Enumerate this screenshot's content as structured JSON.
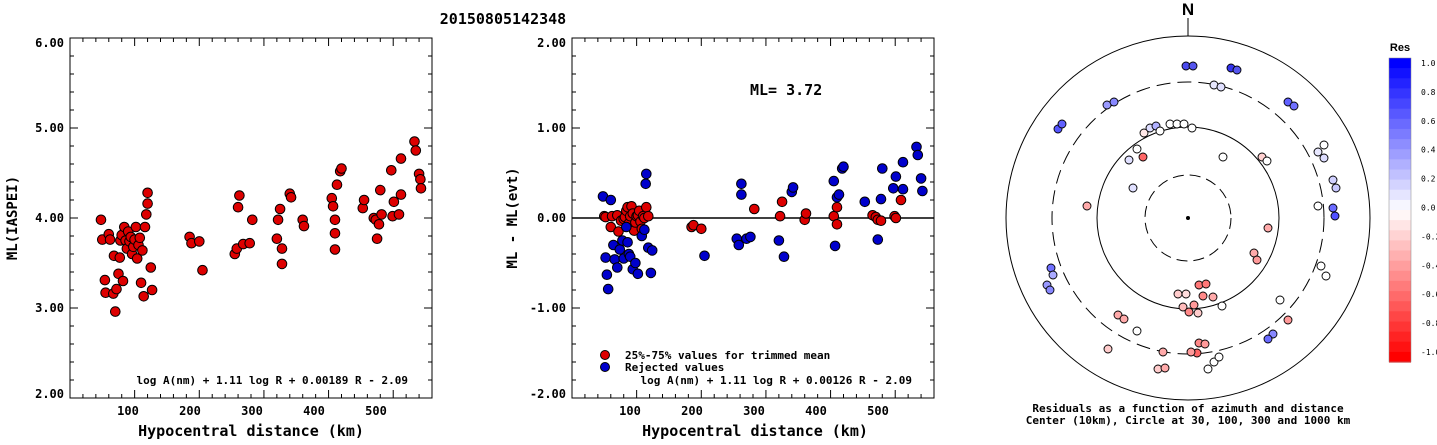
{
  "event_id": "20150805142348",
  "left_chart": {
    "ylabel": "ML(IASPEI)",
    "xlabel": "Hypocentral distance (km)",
    "formula": "log A(nm) + 1.11 log R + 0.00189 R - 2.09",
    "yticks": [
      "6.00",
      "5.00",
      "4.00",
      "3.00",
      "2.00"
    ],
    "xticks": [
      "100",
      "200",
      "300",
      "400",
      "500"
    ]
  },
  "middle_chart": {
    "ylabel": "ML - ML(evt)",
    "xlabel": "Hypocentral distance (km)",
    "ml_label": "ML= 3.72",
    "formula": "log A(nm) + 1.11 log R + 0.00126 R - 2.09",
    "legend_trimmed": "25%-75% values for trimmed mean",
    "legend_rejected": "Rejected values",
    "yticks": [
      "2.00",
      "1.00",
      "0.00",
      "-1.00",
      "-2.00"
    ],
    "xticks": [
      "100",
      "200",
      "300",
      "400",
      "500"
    ]
  },
  "polar": {
    "north": "N",
    "caption1": "Residuals as a function of azimuth and distance",
    "caption2": "Center (10km), Circle at 30, 100, 300 and 1000 km"
  },
  "colorbar": {
    "title": "Res",
    "ticks": [
      "1.0",
      "0.8",
      "0.6",
      "0.4",
      "0.2",
      "0.0",
      "-0.2",
      "-0.4",
      "-0.6",
      "-0.8",
      "-1.0"
    ]
  },
  "colors": {
    "trimmed": "#dd0000",
    "rejected": "#0000cc"
  },
  "chart_data": [
    {
      "type": "scatter",
      "title": "20150805142348",
      "xlabel": "Hypocentral distance (km)",
      "ylabel": "ML(IASPEI)",
      "xlim": [
        0,
        560
      ],
      "ylim": [
        2.0,
        6.0
      ],
      "series": [
        {
          "points": [
            [
              48,
              3.98
            ],
            [
              50,
              3.76
            ],
            [
              54,
              3.31
            ],
            [
              55,
              3.17
            ],
            [
              60,
              3.82
            ],
            [
              62,
              3.76
            ],
            [
              67,
              3.16
            ],
            [
              68,
              3.58
            ],
            [
              70,
              2.96
            ],
            [
              72,
              3.21
            ],
            [
              75,
              3.38
            ],
            [
              77,
              3.56
            ],
            [
              78,
              3.75
            ],
            [
              80,
              3.81
            ],
            [
              82,
              3.3
            ],
            [
              84,
              3.9
            ],
            [
              86,
              3.75
            ],
            [
              88,
              3.66
            ],
            [
              90,
              3.85
            ],
            [
              92,
              3.74
            ],
            [
              94,
              3.79
            ],
            [
              96,
              3.6
            ],
            [
              98,
              3.68
            ],
            [
              100,
              3.76
            ],
            [
              102,
              3.9
            ],
            [
              104,
              3.55
            ],
            [
              106,
              3.7
            ],
            [
              108,
              3.78
            ],
            [
              110,
              3.28
            ],
            [
              112,
              3.64
            ],
            [
              114,
              3.13
            ],
            [
              116,
              3.9
            ],
            [
              118,
              4.04
            ],
            [
              120,
              4.16
            ],
            [
              120,
              4.28
            ],
            [
              125,
              3.45
            ],
            [
              127,
              3.2
            ],
            [
              185,
              3.79
            ],
            [
              188,
              3.72
            ],
            [
              200,
              3.74
            ],
            [
              205,
              3.42
            ],
            [
              255,
              3.6
            ],
            [
              258,
              3.66
            ],
            [
              260,
              4.12
            ],
            [
              262,
              4.25
            ],
            [
              268,
              3.71
            ],
            [
              278,
              3.72
            ],
            [
              282,
              3.98
            ],
            [
              320,
              3.77
            ],
            [
              322,
              3.98
            ],
            [
              325,
              4.1
            ],
            [
              328,
              3.49
            ],
            [
              328,
              3.66
            ],
            [
              340,
              4.27
            ],
            [
              342,
              4.23
            ],
            [
              360,
              3.98
            ],
            [
              362,
              3.91
            ],
            [
              405,
              4.22
            ],
            [
              407,
              4.13
            ],
            [
              410,
              3.65
            ],
            [
              410,
              3.83
            ],
            [
              410,
              3.98
            ],
            [
              413,
              4.37
            ],
            [
              418,
              4.52
            ],
            [
              420,
              4.55
            ],
            [
              453,
              4.11
            ],
            [
              455,
              4.2
            ],
            [
              470,
              4.0
            ],
            [
              473,
              3.98
            ],
            [
              475,
              3.77
            ],
            [
              478,
              3.93
            ],
            [
              480,
              4.31
            ],
            [
              482,
              4.04
            ],
            [
              497,
              4.53
            ],
            [
              499,
              4.02
            ],
            [
              501,
              4.18
            ],
            [
              509,
              4.04
            ],
            [
              512,
              4.26
            ],
            [
              512,
              4.66
            ],
            [
              533,
              4.85
            ],
            [
              535,
              4.75
            ],
            [
              540,
              4.49
            ],
            [
              542,
              4.43
            ],
            [
              543,
              4.33
            ]
          ]
        }
      ]
    },
    {
      "type": "scatter",
      "xlabel": "Hypocentral distance (km)",
      "ylabel": "ML - ML(evt)",
      "xlim": [
        0,
        560
      ],
      "ylim": [
        -2.0,
        2.0
      ],
      "annotation": "ML= 3.72",
      "series": [
        {
          "name": "25%-75% values for trimmed mean",
          "points": [
            [
              50,
              0.02
            ],
            [
              52,
              0.01
            ],
            [
              60,
              -0.1
            ],
            [
              62,
              0.02
            ],
            [
              70,
              0.03
            ],
            [
              72,
              -0.15
            ],
            [
              76,
              -0.03
            ],
            [
              80,
              -0.01
            ],
            [
              82,
              0.01
            ],
            [
              84,
              0.08
            ],
            [
              86,
              0.12
            ],
            [
              88,
              -0.06
            ],
            [
              90,
              0.02
            ],
            [
              92,
              0.13
            ],
            [
              94,
              0.05
            ],
            [
              96,
              -0.14
            ],
            [
              98,
              -0.05
            ],
            [
              100,
              0.02
            ],
            [
              102,
              0.03
            ],
            [
              104,
              0.08
            ],
            [
              106,
              -0.04
            ],
            [
              108,
              -0.12
            ],
            [
              110,
              0.02
            ],
            [
              112,
              0.0
            ],
            [
              115,
              0.12
            ],
            [
              118,
              0.02
            ],
            [
              185,
              -0.1
            ],
            [
              188,
              -0.08
            ],
            [
              200,
              -0.12
            ],
            [
              282,
              0.1
            ],
            [
              322,
              0.02
            ],
            [
              325,
              0.18
            ],
            [
              360,
              -0.02
            ],
            [
              362,
              0.05
            ],
            [
              405,
              0.02
            ],
            [
              410,
              0.12
            ],
            [
              410,
              -0.07
            ],
            [
              465,
              0.03
            ],
            [
              470,
              0.01
            ],
            [
              473,
              -0.02
            ],
            [
              478,
              -0.03
            ],
            [
              499,
              0.02
            ],
            [
              501,
              0.0
            ],
            [
              509,
              0.2
            ]
          ]
        },
        {
          "name": "Rejected values",
          "points": [
            [
              48,
              0.24
            ],
            [
              52,
              -0.44
            ],
            [
              54,
              -0.63
            ],
            [
              56,
              -0.79
            ],
            [
              60,
              0.2
            ],
            [
              64,
              -0.3
            ],
            [
              66,
              -0.46
            ],
            [
              70,
              -0.55
            ],
            [
              74,
              -0.35
            ],
            [
              78,
              -0.25
            ],
            [
              80,
              -0.45
            ],
            [
              84,
              -0.1
            ],
            [
              86,
              -0.27
            ],
            [
              88,
              -0.4
            ],
            [
              90,
              -0.43
            ],
            [
              94,
              -0.57
            ],
            [
              98,
              -0.5
            ],
            [
              102,
              -0.62
            ],
            [
              108,
              -0.2
            ],
            [
              112,
              -0.13
            ],
            [
              114,
              0.38
            ],
            [
              115,
              0.49
            ],
            [
              118,
              -0.33
            ],
            [
              122,
              -0.61
            ],
            [
              124,
              -0.36
            ],
            [
              205,
              -0.42
            ],
            [
              255,
              -0.23
            ],
            [
              258,
              -0.3
            ],
            [
              262,
              0.38
            ],
            [
              262,
              0.26
            ],
            [
              270,
              -0.23
            ],
            [
              276,
              -0.21
            ],
            [
              320,
              -0.25
            ],
            [
              328,
              -0.43
            ],
            [
              340,
              0.29
            ],
            [
              342,
              0.34
            ],
            [
              405,
              0.41
            ],
            [
              407,
              -0.31
            ],
            [
              410,
              0.23
            ],
            [
              413,
              0.26
            ],
            [
              418,
              0.55
            ],
            [
              420,
              0.57
            ],
            [
              453,
              0.18
            ],
            [
              473,
              -0.24
            ],
            [
              478,
              0.21
            ],
            [
              480,
              0.55
            ],
            [
              497,
              0.33
            ],
            [
              501,
              0.46
            ],
            [
              512,
              0.62
            ],
            [
              512,
              0.32
            ],
            [
              533,
              0.79
            ],
            [
              535,
              0.7
            ],
            [
              540,
              0.44
            ],
            [
              542,
              0.3
            ]
          ]
        }
      ]
    }
  ]
}
